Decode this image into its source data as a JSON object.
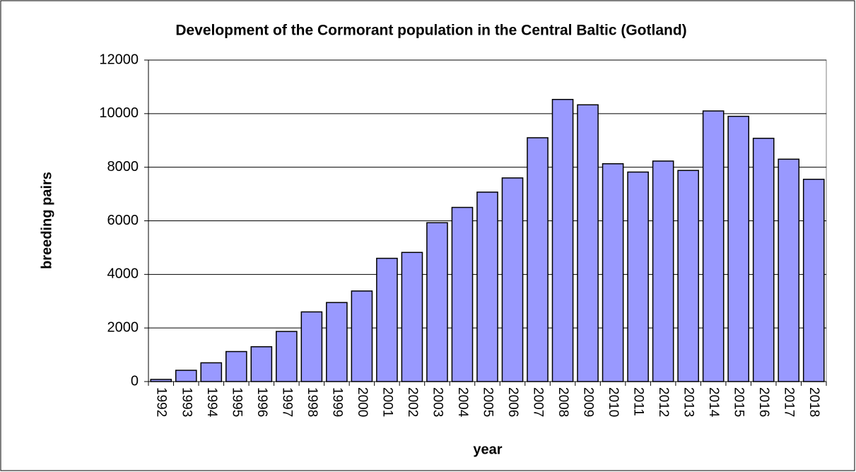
{
  "chart_data": {
    "type": "bar",
    "title": "Development of the Cormorant population in the Central Baltic (Gotland)",
    "x_label": "year",
    "y_label": "breeding pairs",
    "categories": [
      "1992",
      "1993",
      "1994",
      "1995",
      "1996",
      "1997",
      "1998",
      "1999",
      "2000",
      "2001",
      "2002",
      "2003",
      "2004",
      "2005",
      "2006",
      "2007",
      "2008",
      "2009",
      "2010",
      "2011",
      "2012",
      "2013",
      "2014",
      "2015",
      "2016",
      "2017",
      "2018"
    ],
    "values": [
      80,
      420,
      700,
      1120,
      1300,
      1870,
      2600,
      2950,
      3380,
      4600,
      4820,
      5930,
      6500,
      7070,
      7600,
      9100,
      10530,
      10330,
      8130,
      7820,
      8230,
      7880,
      10100,
      9900,
      9080,
      8300,
      7550
    ],
    "color": "#9999ff",
    "ylim": [
      0,
      12000
    ],
    "yticks": [
      0,
      2000,
      4000,
      6000,
      8000,
      10000,
      12000
    ],
    "grid": true
  }
}
